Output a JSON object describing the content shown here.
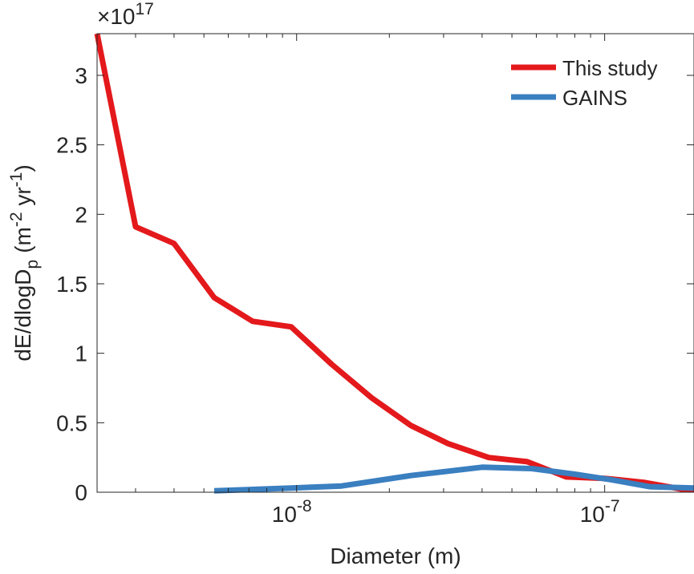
{
  "chart_data": {
    "type": "line",
    "xlabel": "Diameter (m)",
    "ylabel_main": "dE/dlogD",
    "ylabel_sub": "p",
    "ylabel_unit_open": "(m",
    "ylabel_exp1": "-2",
    "ylabel_unit_mid": " yr",
    "ylabel_exp2": "-1",
    "ylabel_unit_close": ")",
    "x_scale": "log",
    "xlim": [
      2.25e-09,
      1.95e-07
    ],
    "ylim": [
      0,
      3.3
    ],
    "y_multiplier_base": "×10",
    "y_multiplier_exp": "17",
    "x_ticks": [
      {
        "value": 1e-08,
        "base": "10",
        "exp": "-8"
      },
      {
        "value": 1e-07,
        "base": "10",
        "exp": "-7"
      }
    ],
    "y_ticks": [
      {
        "value": 0,
        "label": "0"
      },
      {
        "value": 0.5,
        "label": "0.5"
      },
      {
        "value": 1,
        "label": "1"
      },
      {
        "value": 1.5,
        "label": "1.5"
      },
      {
        "value": 2,
        "label": "2"
      },
      {
        "value": 2.5,
        "label": "2.5"
      },
      {
        "value": 3,
        "label": "3"
      }
    ],
    "grid": false,
    "legend_position": "top-right",
    "series": [
      {
        "name": "This study",
        "color": "#e3191c",
        "x": [
          2.25e-09,
          3e-09,
          4e-09,
          5.4e-09,
          7.2e-09,
          9.6e-09,
          1.3e-08,
          1.75e-08,
          2.35e-08,
          3.1e-08,
          4.2e-08,
          5.6e-08,
          7.5e-08,
          1e-07,
          1.35e-07,
          1.8e-07,
          1.95e-07
        ],
        "y": [
          3.3,
          1.91,
          1.79,
          1.4,
          1.23,
          1.19,
          0.92,
          0.68,
          0.48,
          0.35,
          0.25,
          0.22,
          0.11,
          0.1,
          0.07,
          0.02,
          0.02
        ]
      },
      {
        "name": "GAINS",
        "color": "#3a7fc0",
        "x": [
          5.4e-09,
          9.6e-09,
          1.4e-08,
          2.35e-08,
          4e-08,
          5.8e-08,
          8e-08,
          1.05e-07,
          1.4e-07,
          1.95e-07
        ],
        "y": [
          0.01,
          0.03,
          0.045,
          0.12,
          0.18,
          0.17,
          0.13,
          0.09,
          0.04,
          0.03
        ]
      }
    ]
  }
}
